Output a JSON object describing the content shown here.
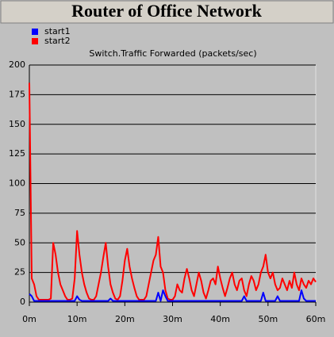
{
  "chart_data": {
    "type": "line",
    "title": "Router of Office Network",
    "subtitle": "Switch.Traffic Forwarded (packets/sec)",
    "x": [
      0,
      0.5,
      1,
      1.5,
      2,
      2.5,
      3,
      3.5,
      4,
      4.5,
      5,
      5.5,
      6,
      6.5,
      7,
      7.5,
      8,
      8.5,
      9,
      9.5,
      10,
      10.5,
      11,
      11.5,
      12,
      12.5,
      13,
      13.5,
      14,
      14.5,
      15,
      15.5,
      16,
      16.5,
      17,
      17.5,
      18,
      18.5,
      19,
      19.5,
      20,
      20.5,
      21,
      21.5,
      22,
      22.5,
      23,
      23.5,
      24,
      24.5,
      25,
      25.5,
      26,
      26.5,
      27,
      27.5,
      28,
      28.5,
      29,
      29.5,
      30,
      30.5,
      31,
      31.5,
      32,
      32.5,
      33,
      33.5,
      34,
      34.5,
      35,
      35.5,
      36,
      36.5,
      37,
      37.5,
      38,
      38.5,
      39,
      39.5,
      40,
      40.5,
      41,
      41.5,
      42,
      42.5,
      43,
      43.5,
      44,
      44.5,
      45,
      45.5,
      46,
      46.5,
      47,
      47.5,
      48,
      48.5,
      49,
      49.5,
      50,
      50.5,
      51,
      51.5,
      52,
      52.5,
      53,
      53.5,
      54,
      54.5,
      55,
      55.5,
      56,
      56.5,
      57,
      57.5,
      58,
      58.5,
      59,
      59.5,
      60
    ],
    "series": [
      {
        "name": "start1",
        "color": "#0000ff",
        "values": [
          7,
          5,
          1,
          1,
          1,
          1,
          1,
          1,
          1,
          1,
          1,
          1,
          1,
          1,
          1,
          1,
          1,
          1,
          1,
          1,
          5,
          2,
          1,
          1,
          1,
          1,
          1,
          1,
          1,
          1,
          1,
          1,
          1,
          1,
          3,
          1,
          1,
          1,
          1,
          1,
          1,
          1,
          1,
          1,
          1,
          1,
          1,
          1,
          1,
          1,
          1,
          1,
          1,
          1,
          8,
          1,
          10,
          5,
          1,
          1,
          1,
          1,
          1,
          1,
          1,
          1,
          1,
          1,
          1,
          1,
          1,
          1,
          1,
          1,
          1,
          1,
          1,
          1,
          1,
          1,
          1,
          1,
          1,
          1,
          1,
          1,
          1,
          1,
          1,
          1,
          5,
          1,
          1,
          1,
          1,
          1,
          1,
          1,
          8,
          1,
          1,
          1,
          1,
          1,
          5,
          1,
          1,
          1,
          1,
          1,
          1,
          1,
          1,
          1,
          10,
          3,
          1,
          1,
          1,
          1,
          1
        ]
      },
      {
        "name": "start2",
        "color": "#ff0000",
        "values": [
          185,
          20,
          15,
          5,
          2,
          2,
          2,
          2,
          2,
          3,
          50,
          40,
          25,
          15,
          10,
          5,
          2,
          2,
          3,
          20,
          60,
          40,
          25,
          15,
          8,
          3,
          2,
          2,
          5,
          15,
          25,
          38,
          50,
          30,
          15,
          8,
          3,
          2,
          5,
          18,
          35,
          45,
          30,
          20,
          12,
          5,
          2,
          2,
          2,
          5,
          15,
          25,
          35,
          40,
          55,
          30,
          25,
          10,
          3,
          2,
          2,
          5,
          15,
          10,
          8,
          20,
          28,
          20,
          10,
          5,
          15,
          25,
          18,
          8,
          3,
          10,
          18,
          20,
          15,
          30,
          20,
          12,
          5,
          12,
          20,
          25,
          15,
          10,
          18,
          20,
          10,
          5,
          15,
          22,
          18,
          10,
          15,
          25,
          30,
          40,
          25,
          20,
          25,
          15,
          10,
          12,
          20,
          15,
          10,
          18,
          12,
          25,
          15,
          10,
          20,
          15,
          12,
          18,
          15,
          20,
          17
        ]
      }
    ],
    "xlim": [
      0,
      60
    ],
    "xticks": [
      {
        "value": 0,
        "label": "0m"
      },
      {
        "value": 10,
        "label": "10m"
      },
      {
        "value": 20,
        "label": "20m"
      },
      {
        "value": 30,
        "label": "30m"
      },
      {
        "value": 40,
        "label": "40m"
      },
      {
        "value": 50,
        "label": "50m"
      },
      {
        "value": 60,
        "label": "60m"
      }
    ],
    "ylim": [
      0,
      200
    ],
    "yticks": [
      0,
      25,
      50,
      75,
      100,
      125,
      150,
      175,
      200
    ],
    "grid": true
  }
}
